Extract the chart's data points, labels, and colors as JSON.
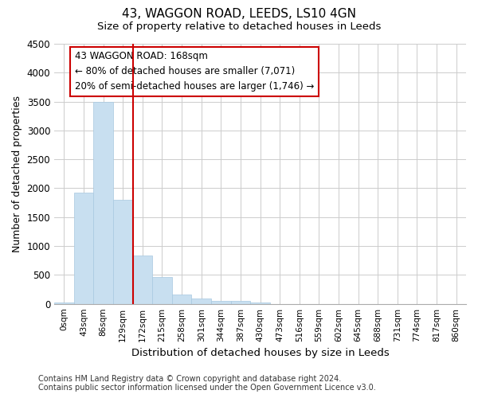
{
  "title": "43, WAGGON ROAD, LEEDS, LS10 4GN",
  "subtitle": "Size of property relative to detached houses in Leeds",
  "xlabel": "Distribution of detached houses by size in Leeds",
  "ylabel": "Number of detached properties",
  "bar_color": "#c8dff0",
  "bar_edge_color": "#a8c8e0",
  "vline_color": "#cc0000",
  "annotation_text": "43 WAGGON ROAD: 168sqm\n← 80% of detached houses are smaller (7,071)\n20% of semi-detached houses are larger (1,746) →",
  "categories": [
    "0sqm",
    "43sqm",
    "86sqm",
    "129sqm",
    "172sqm",
    "215sqm",
    "258sqm",
    "301sqm",
    "344sqm",
    "387sqm",
    "430sqm",
    "473sqm",
    "516sqm",
    "559sqm",
    "602sqm",
    "645sqm",
    "688sqm",
    "731sqm",
    "774sqm",
    "817sqm",
    "860sqm"
  ],
  "bar_heights": [
    30,
    1920,
    3500,
    1800,
    840,
    460,
    160,
    90,
    55,
    45,
    30,
    0,
    0,
    0,
    0,
    0,
    0,
    0,
    0,
    0,
    0
  ],
  "ylim": [
    0,
    4500
  ],
  "yticks": [
    0,
    500,
    1000,
    1500,
    2000,
    2500,
    3000,
    3500,
    4000,
    4500
  ],
  "footer_line1": "Contains HM Land Registry data © Crown copyright and database right 2024.",
  "footer_line2": "Contains public sector information licensed under the Open Government Licence v3.0.",
  "bg_color": "#ffffff",
  "plot_bg_color": "#ffffff",
  "grid_color": "#cccccc"
}
